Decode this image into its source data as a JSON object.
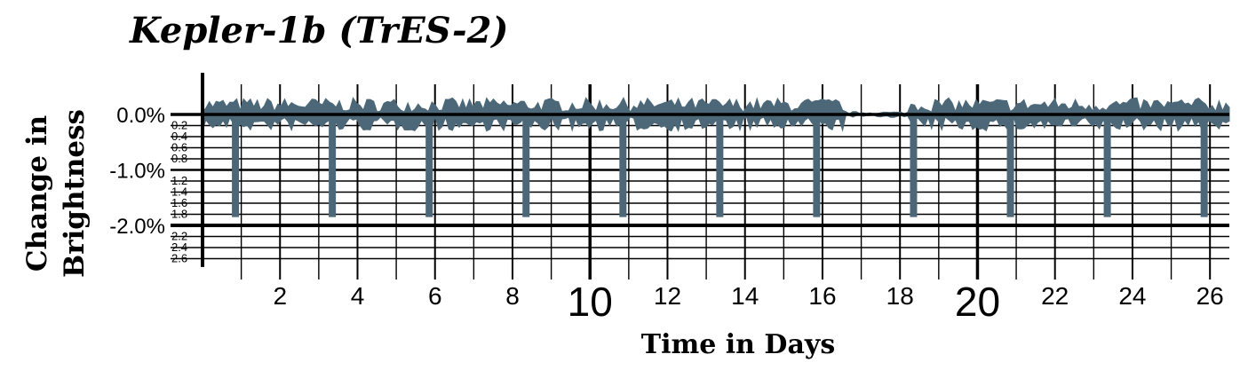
{
  "chart_data": {
    "type": "line",
    "title": "Kepler-1b (TrES-2)",
    "xlabel": "Time in Days",
    "ylabel_lines": [
      "Change in",
      "Brightness"
    ],
    "xlim": [
      0,
      26.5
    ],
    "ylim": [
      -2.75,
      0.5
    ],
    "x_ticks": [
      {
        "value": 2,
        "label": "2",
        "emphasis": false
      },
      {
        "value": 4,
        "label": "4",
        "emphasis": false
      },
      {
        "value": 6,
        "label": "6",
        "emphasis": false
      },
      {
        "value": 8,
        "label": "8",
        "emphasis": false
      },
      {
        "value": 10,
        "label": "10",
        "emphasis": true
      },
      {
        "value": 12,
        "label": "12",
        "emphasis": false
      },
      {
        "value": 14,
        "label": "14",
        "emphasis": false
      },
      {
        "value": 16,
        "label": "16",
        "emphasis": false
      },
      {
        "value": 18,
        "label": "18",
        "emphasis": false
      },
      {
        "value": 20,
        "label": "20",
        "emphasis": true
      },
      {
        "value": 22,
        "label": "22",
        "emphasis": false
      },
      {
        "value": 24,
        "label": "24",
        "emphasis": false
      },
      {
        "value": 26,
        "label": "26",
        "emphasis": false
      }
    ],
    "y_major_ticks": [
      {
        "value": 0,
        "label": "0.0%"
      },
      {
        "value": -1,
        "label": "-1.0%"
      },
      {
        "value": -2,
        "label": "-2.0%"
      }
    ],
    "y_minor_ticks": [
      {
        "value": -0.2,
        "label": "0.2"
      },
      {
        "value": -0.4,
        "label": "0.4"
      },
      {
        "value": -0.6,
        "label": "0.6"
      },
      {
        "value": -0.8,
        "label": "0.8"
      },
      {
        "value": -1.2,
        "label": "1.2"
      },
      {
        "value": -1.4,
        "label": "1.4"
      },
      {
        "value": -1.6,
        "label": "1.6"
      },
      {
        "value": -1.8,
        "label": "1.8"
      },
      {
        "value": -2.2,
        "label": "2.2"
      },
      {
        "value": -2.4,
        "label": "2.4"
      },
      {
        "value": -2.6,
        "label": "2.6"
      }
    ],
    "noise_band": {
      "upper": 0.3,
      "lower": -0.3
    },
    "transits": {
      "depth": -1.85,
      "times": [
        0.85,
        3.35,
        5.85,
        8.35,
        10.85,
        13.35,
        15.85,
        18.35,
        20.85,
        23.35,
        25.85
      ]
    },
    "grid": true,
    "colors": {
      "series": "#4c6878",
      "grid": "#000000"
    }
  }
}
